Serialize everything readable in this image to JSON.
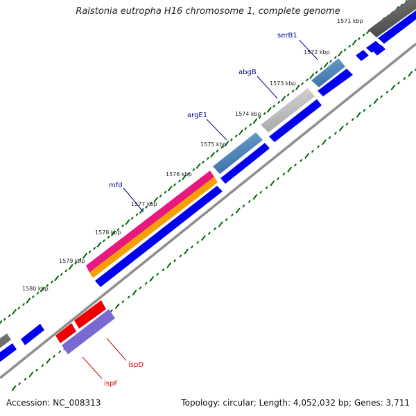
{
  "title": "Ralstonia eutropha H16 chromosome 1, complete genome",
  "footer": {
    "accession": "Accession: NC_008313",
    "summary": "Topology: circular; Length: 4,052,032 bp; Genes: 3,711"
  },
  "ticks": [
    "1571 kbp",
    "1572 kbp",
    "1573 kbp",
    "1574 kbp",
    "1575 kbp",
    "1576 kbp",
    "1577 kbp",
    "1578 kbp",
    "1579 kbp",
    "1580 kbp"
  ],
  "genes": [
    {
      "name": "serB1",
      "color": "#00008b"
    },
    {
      "name": "abgB",
      "color": "#00008b"
    },
    {
      "name": "argE1",
      "color": "#00008b"
    },
    {
      "name": "mfd",
      "color": "#00008b"
    },
    {
      "name": "ispD",
      "color": "#cc0000"
    },
    {
      "name": "ispF",
      "color": "#cc0000"
    }
  ],
  "colors": {
    "backbone": "#808080",
    "cds": "#0000ee",
    "gene_steelblue": "#4a86b8",
    "gene_gray": "#b8b8b8",
    "gene_darkgray": "#606060",
    "gene_magenta": "#e8187e",
    "gene_orange": "#f5a000",
    "gene_red": "#ee0000",
    "gene_purple": "#7b68d0",
    "gc_tick": "#006400"
  }
}
